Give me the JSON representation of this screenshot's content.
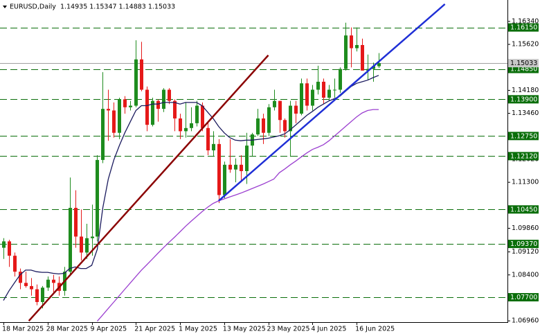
{
  "chart_data": {
    "type": "candlestick",
    "title": "EURUSD,Daily  1.14935 1.15347 1.14883 1.15033",
    "categories": [
      "18 Mar 2025",
      null,
      null,
      null,
      null,
      null,
      null,
      null,
      "28 Mar 2025",
      null,
      null,
      null,
      null,
      null,
      null,
      null,
      "9 Apr 2025",
      null,
      null,
      null,
      null,
      null,
      null,
      null,
      "21 Apr 2025",
      null,
      null,
      null,
      null,
      null,
      null,
      null,
      "1 May 2025",
      null,
      null,
      null,
      null,
      null,
      null,
      null,
      "13 May 2025",
      null,
      null,
      null,
      null,
      null,
      null,
      null,
      "23 May 2025",
      null,
      null,
      null,
      null,
      null,
      null,
      null,
      "4 Jun 2025",
      null,
      null,
      null,
      null,
      null,
      null,
      null,
      "16 Jun 2025",
      null,
      null,
      null,
      null
    ],
    "open": [
      1.0925,
      1.0945,
      1.09,
      1.085,
      1.0815,
      1.0805,
      1.0795,
      1.0755,
      1.08,
      1.0825,
      1.0815,
      1.079,
      1.085,
      1.105,
      1.096,
      1.091,
      1.0955,
      1.096,
      1.12,
      1.136,
      1.1355,
      1.1285,
      1.139,
      1.1365,
      1.137,
      1.1515,
      1.142,
      1.131,
      1.1385,
      1.136,
      1.142,
      1.1385,
      1.133,
      1.129,
      1.13,
      1.1315,
      1.137,
      1.13,
      1.123,
      1.125,
      1.109,
      1.1185,
      1.117,
      1.1185,
      1.1165,
      1.1245,
      1.128,
      1.133,
      1.1285,
      1.1365,
      1.1385,
      1.1325,
      1.129,
      1.137,
      1.1345,
      1.144,
      1.137,
      1.142,
      1.1445,
      1.1395,
      1.142,
      1.142,
      1.1485,
      1.159,
      1.155,
      1.156,
      1.148,
      1.1485,
      1.14935
    ],
    "high": [
      1.0955,
      1.095,
      1.091,
      1.086,
      1.085,
      1.083,
      1.081,
      1.0805,
      1.0835,
      1.084,
      1.0835,
      1.0865,
      1.1145,
      1.1105,
      1.1045,
      1.1,
      1.106,
      1.1215,
      1.1475,
      1.142,
      1.138,
      1.1395,
      1.14,
      1.1385,
      1.1575,
      1.157,
      1.143,
      1.1395,
      1.139,
      1.1425,
      1.1425,
      1.139,
      1.1345,
      1.138,
      1.1365,
      1.1385,
      1.138,
      1.132,
      1.129,
      1.1265,
      1.1195,
      1.1265,
      1.1205,
      1.1215,
      1.1285,
      1.1285,
      1.136,
      1.1345,
      1.1375,
      1.142,
      1.1385,
      1.133,
      1.1385,
      1.1385,
      1.1455,
      1.1455,
      1.1435,
      1.1495,
      1.1455,
      1.1435,
      1.1455,
      1.149,
      1.163,
      1.1615,
      1.1615,
      1.158,
      1.153,
      1.1505,
      1.15347
    ],
    "low": [
      1.089,
      1.0865,
      1.0835,
      1.0795,
      1.08,
      1.0775,
      1.0745,
      1.0735,
      1.079,
      1.0785,
      1.0775,
      1.0775,
      1.084,
      1.0925,
      1.0885,
      1.089,
      1.09,
      1.0945,
      1.119,
      1.126,
      1.127,
      1.1265,
      1.1345,
      1.1355,
      1.1365,
      1.1415,
      1.129,
      1.1305,
      1.132,
      1.135,
      1.1375,
      1.129,
      1.1265,
      1.127,
      1.129,
      1.1305,
      1.129,
      1.1215,
      1.121,
      1.1065,
      1.108,
      1.116,
      1.113,
      1.113,
      1.1125,
      1.121,
      1.1275,
      1.125,
      1.1275,
      1.1355,
      1.1285,
      1.127,
      1.121,
      1.1315,
      1.134,
      1.1355,
      1.1355,
      1.1405,
      1.1375,
      1.1385,
      1.1395,
      1.141,
      1.148,
      1.149,
      1.154,
      1.148,
      1.145,
      1.1445,
      1.14883
    ],
    "close": [
      1.0945,
      1.09,
      1.085,
      1.0815,
      1.0805,
      1.0795,
      1.0755,
      1.08,
      1.0825,
      1.0815,
      1.079,
      1.085,
      1.105,
      1.096,
      1.091,
      1.0955,
      1.096,
      1.12,
      1.136,
      1.1355,
      1.1285,
      1.139,
      1.1365,
      1.137,
      1.1515,
      1.142,
      1.131,
      1.1385,
      1.136,
      1.142,
      1.1385,
      1.133,
      1.129,
      1.13,
      1.1315,
      1.137,
      1.13,
      1.123,
      1.125,
      1.109,
      1.1185,
      1.117,
      1.1185,
      1.1165,
      1.1245,
      1.128,
      1.133,
      1.1285,
      1.1365,
      1.1385,
      1.1325,
      1.129,
      1.137,
      1.1345,
      1.144,
      1.137,
      1.142,
      1.1445,
      1.1395,
      1.142,
      1.142,
      1.1485,
      1.159,
      1.155,
      1.156,
      1.148,
      1.1485,
      1.14935,
      1.15033
    ],
    "up_color": "#1e8c1e",
    "down_color": "#e51919",
    "indicators": [
      {
        "color": "#1a1a5e",
        "values": [
          1.076,
          1.079,
          1.0815,
          1.084,
          1.0855,
          1.0855,
          1.085,
          1.0848,
          1.0848,
          1.0845,
          1.0843,
          1.0845,
          1.086,
          1.0865,
          1.086,
          1.086,
          1.087,
          1.092,
          1.105,
          1.114,
          1.12,
          1.1245,
          1.1285,
          1.132,
          1.1355,
          1.137,
          1.137,
          1.1375,
          1.1375,
          1.138,
          1.138,
          1.138,
          1.1375,
          1.138,
          1.138,
          1.138,
          1.137,
          1.135,
          1.133,
          1.1305,
          1.1285,
          1.127,
          1.1262,
          1.126,
          1.1262,
          1.1262,
          1.1264,
          1.1266,
          1.1268,
          1.1272,
          1.1276,
          1.1282,
          1.1295,
          1.131,
          1.1325,
          1.134,
          1.1352,
          1.1365,
          1.1375,
          1.1385,
          1.1392,
          1.14,
          1.1415,
          1.143,
          1.144,
          1.1445,
          1.145,
          1.1458,
          1.1465
        ]
      },
      {
        "color": "#9b3fd0",
        "values": [
          null,
          null,
          null,
          null,
          null,
          null,
          null,
          null,
          null,
          null,
          null,
          null,
          null,
          null,
          null,
          null,
          null,
          1.0695,
          1.0715,
          1.0735,
          1.0755,
          1.0775,
          1.0795,
          1.0815,
          1.0835,
          1.0855,
          1.0872,
          1.089,
          1.0908,
          1.0925,
          1.0942,
          1.0958,
          1.0975,
          1.0992,
          1.1008,
          1.1023,
          1.1038,
          1.1052,
          1.1064,
          1.1072,
          1.1078,
          1.1084,
          1.109,
          1.1096,
          1.1103,
          1.111,
          1.1117,
          1.1124,
          1.1132,
          1.114,
          1.116,
          1.1172,
          1.1185,
          1.1197,
          1.121,
          1.1222,
          1.1233,
          1.124,
          1.1248,
          1.126,
          1.1275,
          1.129,
          1.1305,
          1.132,
          1.1335,
          1.1347,
          1.1355,
          1.1358,
          1.1358
        ]
      }
    ],
    "trendlines": [
      {
        "color": "#8b0000",
        "x": [
          4.6,
          48
        ],
        "y": [
          1.0696,
          1.1528
        ]
      },
      {
        "color": "#1f2fd6",
        "x": [
          39,
          80
        ],
        "y": [
          1.1072,
          1.1688
        ]
      }
    ],
    "ylim": [
      1.0692,
      1.1701
    ],
    "yticks": [
      {
        "value": 1.1634,
        "label": "1.16340"
      },
      {
        "value": 1.1562,
        "label": "1.15620"
      },
      {
        "value": 1.1418,
        "label": "1.14180"
      },
      {
        "value": 1.1346,
        "label": "1.13460"
      },
      {
        "value": 1.1202,
        "label": "1.12020"
      },
      {
        "value": 1.113,
        "label": "1.11300"
      },
      {
        "value": 1.0986,
        "label": "1.09860"
      },
      {
        "value": 1.0912,
        "label": "1.09120"
      },
      {
        "value": 1.084,
        "label": "1.08400"
      },
      {
        "value": 1.0696,
        "label": "1.06960"
      }
    ],
    "levels": [
      {
        "value": 1.1615,
        "label": "1.16150"
      },
      {
        "value": 1.1485,
        "label": "1.14850"
      },
      {
        "value": 1.139,
        "label": "1.13900"
      },
      {
        "value": 1.1275,
        "label": "1.12750"
      },
      {
        "value": 1.1212,
        "label": "1.12120"
      },
      {
        "value": 1.1045,
        "label": "1.10450"
      },
      {
        "value": 1.0937,
        "label": "1.09370"
      },
      {
        "value": 1.077,
        "label": "1.07700"
      }
    ],
    "level_color": "#0a6e0a",
    "last_price": 1.15033
  }
}
